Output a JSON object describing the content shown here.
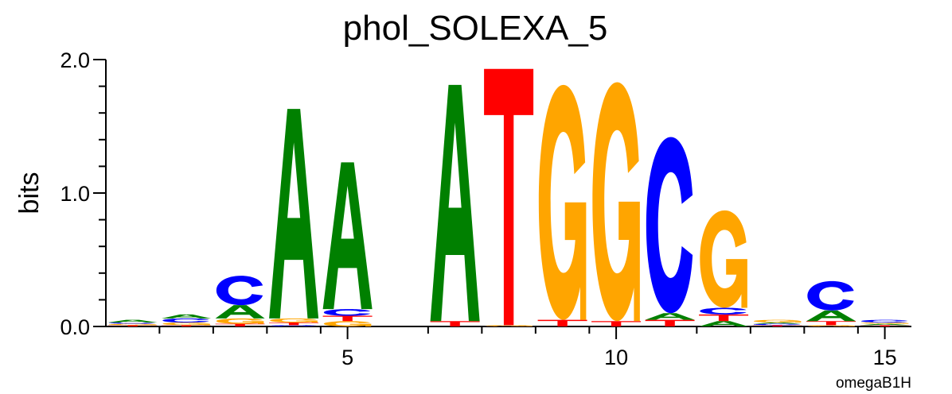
{
  "chart_data": {
    "type": "sequence_logo",
    "title": "phol_SOLEXA_5",
    "ylabel": "bits",
    "xlabel": "",
    "footnote": "omegaB1H",
    "ylim": [
      0,
      2.0
    ],
    "yticks": [
      {
        "value": 0.0,
        "label": "0.0"
      },
      {
        "value": 1.0,
        "label": "1.0"
      },
      {
        "value": 2.0,
        "label": "2.0"
      }
    ],
    "xticks": [
      {
        "value": 5,
        "label": "5"
      },
      {
        "value": 10,
        "label": "10"
      },
      {
        "value": 15,
        "label": "15"
      }
    ],
    "positions": [
      1,
      2,
      3,
      4,
      5,
      6,
      7,
      8,
      9,
      10,
      11,
      12,
      13,
      14,
      15
    ],
    "colors": {
      "A": "#008000",
      "C": "#0000ff",
      "G": "#ffa500",
      "T": "#ff0000"
    },
    "stacks": [
      [
        {
          "base": "T",
          "bits": 0.01
        },
        {
          "base": "G",
          "bits": 0.01
        },
        {
          "base": "C",
          "bits": 0.01
        },
        {
          "base": "A",
          "bits": 0.02
        }
      ],
      [
        {
          "base": "T",
          "bits": 0.01
        },
        {
          "base": "G",
          "bits": 0.02
        },
        {
          "base": "C",
          "bits": 0.03
        },
        {
          "base": "A",
          "bits": 0.03
        }
      ],
      [
        {
          "base": "T",
          "bits": 0.02
        },
        {
          "base": "G",
          "bits": 0.04
        },
        {
          "base": "A",
          "bits": 0.1
        },
        {
          "base": "C",
          "bits": 0.22
        }
      ],
      [
        {
          "base": "C",
          "bits": 0.01
        },
        {
          "base": "T",
          "bits": 0.02
        },
        {
          "base": "G",
          "bits": 0.03
        },
        {
          "base": "A",
          "bits": 1.57
        }
      ],
      [
        {
          "base": "G",
          "bits": 0.04
        },
        {
          "base": "T",
          "bits": 0.04
        },
        {
          "base": "C",
          "bits": 0.05
        },
        {
          "base": "A",
          "bits": 1.1
        }
      ],
      [],
      [
        {
          "base": "T",
          "bits": 0.04
        },
        {
          "base": "A",
          "bits": 1.77
        }
      ],
      [
        {
          "base": "G",
          "bits": 0.01
        },
        {
          "base": "T",
          "bits": 1.92
        }
      ],
      [
        {
          "base": "T",
          "bits": 0.05
        },
        {
          "base": "G",
          "bits": 1.76
        }
      ],
      [
        {
          "base": "T",
          "bits": 0.04
        },
        {
          "base": "G",
          "bits": 1.79
        }
      ],
      [
        {
          "base": "T",
          "bits": 0.05
        },
        {
          "base": "A",
          "bits": 0.05
        },
        {
          "base": "C",
          "bits": 1.32
        }
      ],
      [
        {
          "base": "A",
          "bits": 0.04
        },
        {
          "base": "T",
          "bits": 0.05
        },
        {
          "base": "C",
          "bits": 0.05
        },
        {
          "base": "G",
          "bits": 0.73
        }
      ],
      [
        {
          "base": "T",
          "bits": 0.01
        },
        {
          "base": "C",
          "bits": 0.01
        },
        {
          "base": "A",
          "bits": 0.01
        },
        {
          "base": "G",
          "bits": 0.02
        }
      ],
      [
        {
          "base": "G",
          "bits": 0.01
        },
        {
          "base": "T",
          "bits": 0.03
        },
        {
          "base": "A",
          "bits": 0.08
        },
        {
          "base": "C",
          "bits": 0.22
        }
      ],
      [
        {
          "base": "T",
          "bits": 0.01
        },
        {
          "base": "A",
          "bits": 0.01
        },
        {
          "base": "G",
          "bits": 0.01
        },
        {
          "base": "C",
          "bits": 0.02
        }
      ]
    ],
    "grid": false,
    "legend": "none"
  }
}
